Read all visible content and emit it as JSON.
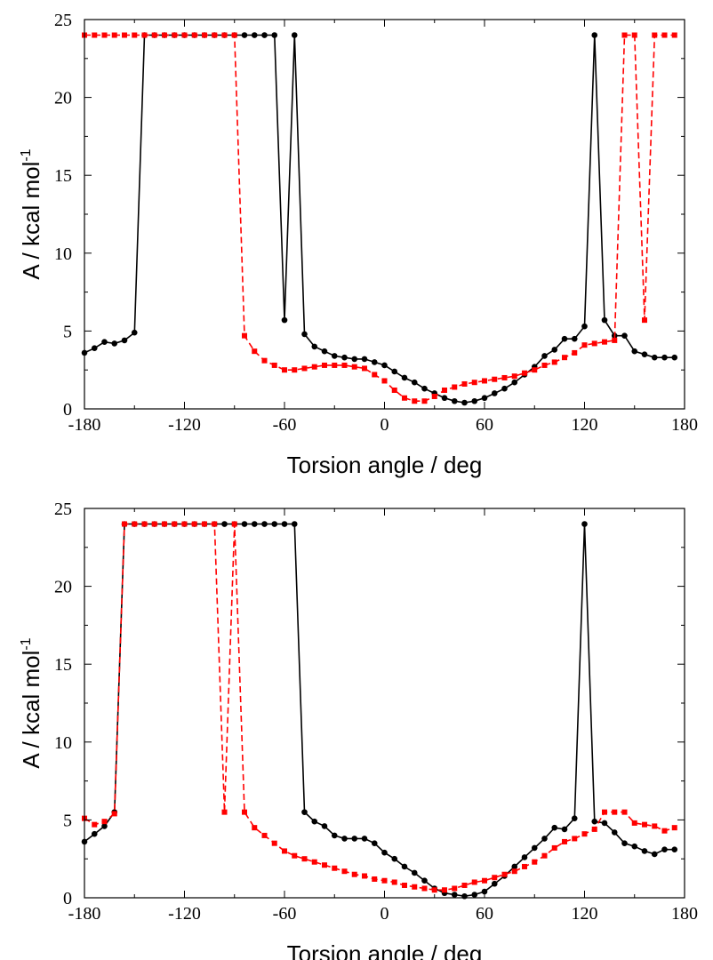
{
  "chart_data": [
    {
      "type": "line",
      "title": "",
      "xlabel": "Torsion angle / deg",
      "ylabel": "A / kcal mol",
      "ylabel_sup": "-1",
      "xlim": [
        -180,
        180
      ],
      "ylim": [
        0,
        25
      ],
      "xticks": [
        -180,
        -120,
        -60,
        0,
        60,
        120,
        180
      ],
      "yticks": [
        0,
        5,
        10,
        15,
        20,
        25
      ],
      "grid": false,
      "series": [
        {
          "color": "#000000",
          "line_style": "solid",
          "marker": "circle",
          "x": [
            -180,
            -174,
            -168,
            -162,
            -156,
            -150,
            -144,
            -138,
            -132,
            -126,
            -120,
            -114,
            -108,
            -102,
            -96,
            -90,
            -84,
            -78,
            -72,
            -66,
            -60,
            -54,
            -48,
            -42,
            -36,
            -30,
            -24,
            -18,
            -12,
            -6,
            0,
            6,
            12,
            18,
            24,
            30,
            36,
            42,
            48,
            54,
            60,
            66,
            72,
            78,
            84,
            90,
            96,
            102,
            108,
            114,
            120,
            126,
            132,
            138,
            144,
            150,
            156,
            162,
            168,
            174
          ],
          "y": [
            3.6,
            3.9,
            4.3,
            4.2,
            4.4,
            4.9,
            24,
            24,
            24,
            24,
            24,
            24,
            24,
            24,
            24,
            24,
            24,
            24,
            24,
            24,
            5.7,
            24,
            4.8,
            4.0,
            3.7,
            3.4,
            3.3,
            3.2,
            3.2,
            3.0,
            2.8,
            2.4,
            2.0,
            1.7,
            1.3,
            1.0,
            0.7,
            0.5,
            0.4,
            0.5,
            0.7,
            1.0,
            1.3,
            1.7,
            2.2,
            2.7,
            3.4,
            3.8,
            4.5,
            4.5,
            5.3,
            24,
            5.7,
            4.7,
            4.7,
            3.7,
            3.5,
            3.3,
            3.3,
            3.3
          ]
        },
        {
          "color": "#ff0000",
          "line_style": "dashed",
          "marker": "square",
          "x": [
            -180,
            -174,
            -168,
            -162,
            -156,
            -150,
            -144,
            -138,
            -132,
            -126,
            -120,
            -114,
            -108,
            -102,
            -96,
            -90,
            -84,
            -78,
            -72,
            -66,
            -60,
            -54,
            -48,
            -42,
            -36,
            -30,
            -24,
            -18,
            -12,
            -6,
            0,
            6,
            12,
            18,
            24,
            30,
            36,
            42,
            48,
            54,
            60,
            66,
            72,
            78,
            84,
            90,
            96,
            102,
            108,
            114,
            120,
            126,
            132,
            138,
            144,
            150,
            156,
            162,
            168,
            174
          ],
          "y": [
            24,
            24,
            24,
            24,
            24,
            24,
            24,
            24,
            24,
            24,
            24,
            24,
            24,
            24,
            24,
            24,
            4.7,
            3.7,
            3.1,
            2.8,
            2.5,
            2.5,
            2.6,
            2.7,
            2.8,
            2.8,
            2.8,
            2.7,
            2.6,
            2.2,
            1.8,
            1.2,
            0.7,
            0.5,
            0.5,
            0.8,
            1.2,
            1.4,
            1.6,
            1.7,
            1.8,
            1.9,
            2.0,
            2.1,
            2.3,
            2.5,
            2.8,
            3.0,
            3.3,
            3.6,
            4.1,
            4.2,
            4.3,
            4.4,
            24,
            24,
            5.7,
            24,
            24,
            24
          ]
        }
      ]
    },
    {
      "type": "line",
      "title": "",
      "xlabel": "Torsion angle / deg",
      "ylabel": "A / kcal mol",
      "ylabel_sup": "-1",
      "xlim": [
        -180,
        180
      ],
      "ylim": [
        0,
        25
      ],
      "xticks": [
        -180,
        -120,
        -60,
        0,
        60,
        120,
        180
      ],
      "yticks": [
        0,
        5,
        10,
        15,
        20,
        25
      ],
      "grid": false,
      "series": [
        {
          "color": "#000000",
          "line_style": "solid",
          "marker": "circle",
          "x": [
            -180,
            -174,
            -168,
            -162,
            -156,
            -150,
            -144,
            -138,
            -132,
            -126,
            -120,
            -114,
            -108,
            -102,
            -96,
            -90,
            -84,
            -78,
            -72,
            -66,
            -60,
            -54,
            -48,
            -42,
            -36,
            -30,
            -24,
            -18,
            -12,
            -6,
            0,
            6,
            12,
            18,
            24,
            30,
            36,
            42,
            48,
            54,
            60,
            66,
            72,
            78,
            84,
            90,
            96,
            102,
            108,
            114,
            120,
            126,
            132,
            138,
            144,
            150,
            156,
            162,
            168,
            174
          ],
          "y": [
            3.6,
            4.1,
            4.6,
            5.5,
            24,
            24,
            24,
            24,
            24,
            24,
            24,
            24,
            24,
            24,
            24,
            24,
            24,
            24,
            24,
            24,
            24,
            24,
            5.5,
            4.9,
            4.6,
            4.0,
            3.8,
            3.8,
            3.8,
            3.5,
            2.9,
            2.5,
            2.0,
            1.6,
            1.1,
            0.6,
            0.3,
            0.2,
            0.1,
            0.2,
            0.4,
            0.9,
            1.4,
            2.0,
            2.6,
            3.2,
            3.8,
            4.5,
            4.4,
            5.1,
            24,
            4.9,
            4.8,
            4.2,
            3.5,
            3.3,
            3.0,
            2.8,
            3.1,
            3.1
          ]
        },
        {
          "color": "#ff0000",
          "line_style": "dashed",
          "marker": "square",
          "x": [
            -180,
            -174,
            -168,
            -162,
            -156,
            -150,
            -144,
            -138,
            -132,
            -126,
            -120,
            -114,
            -108,
            -102,
            -96,
            -90,
            -84,
            -78,
            -72,
            -66,
            -60,
            -54,
            -48,
            -42,
            -36,
            -30,
            -24,
            -18,
            -12,
            -6,
            0,
            6,
            12,
            18,
            24,
            30,
            36,
            42,
            48,
            54,
            60,
            66,
            72,
            78,
            84,
            90,
            96,
            102,
            108,
            114,
            120,
            126,
            132,
            138,
            144,
            150,
            156,
            162,
            168,
            174
          ],
          "y": [
            5.1,
            4.7,
            4.9,
            5.4,
            24,
            24,
            24,
            24,
            24,
            24,
            24,
            24,
            24,
            24,
            5.5,
            24,
            5.5,
            4.5,
            4.0,
            3.5,
            3.0,
            2.7,
            2.5,
            2.3,
            2.1,
            1.9,
            1.7,
            1.5,
            1.4,
            1.2,
            1.1,
            1.0,
            0.8,
            0.7,
            0.6,
            0.5,
            0.5,
            0.6,
            0.8,
            1.0,
            1.1,
            1.3,
            1.5,
            1.7,
            2.0,
            2.3,
            2.7,
            3.2,
            3.6,
            3.8,
            4.1,
            4.4,
            5.5,
            5.5,
            5.5,
            4.8,
            4.7,
            4.6,
            4.3,
            4.5
          ]
        }
      ]
    }
  ]
}
